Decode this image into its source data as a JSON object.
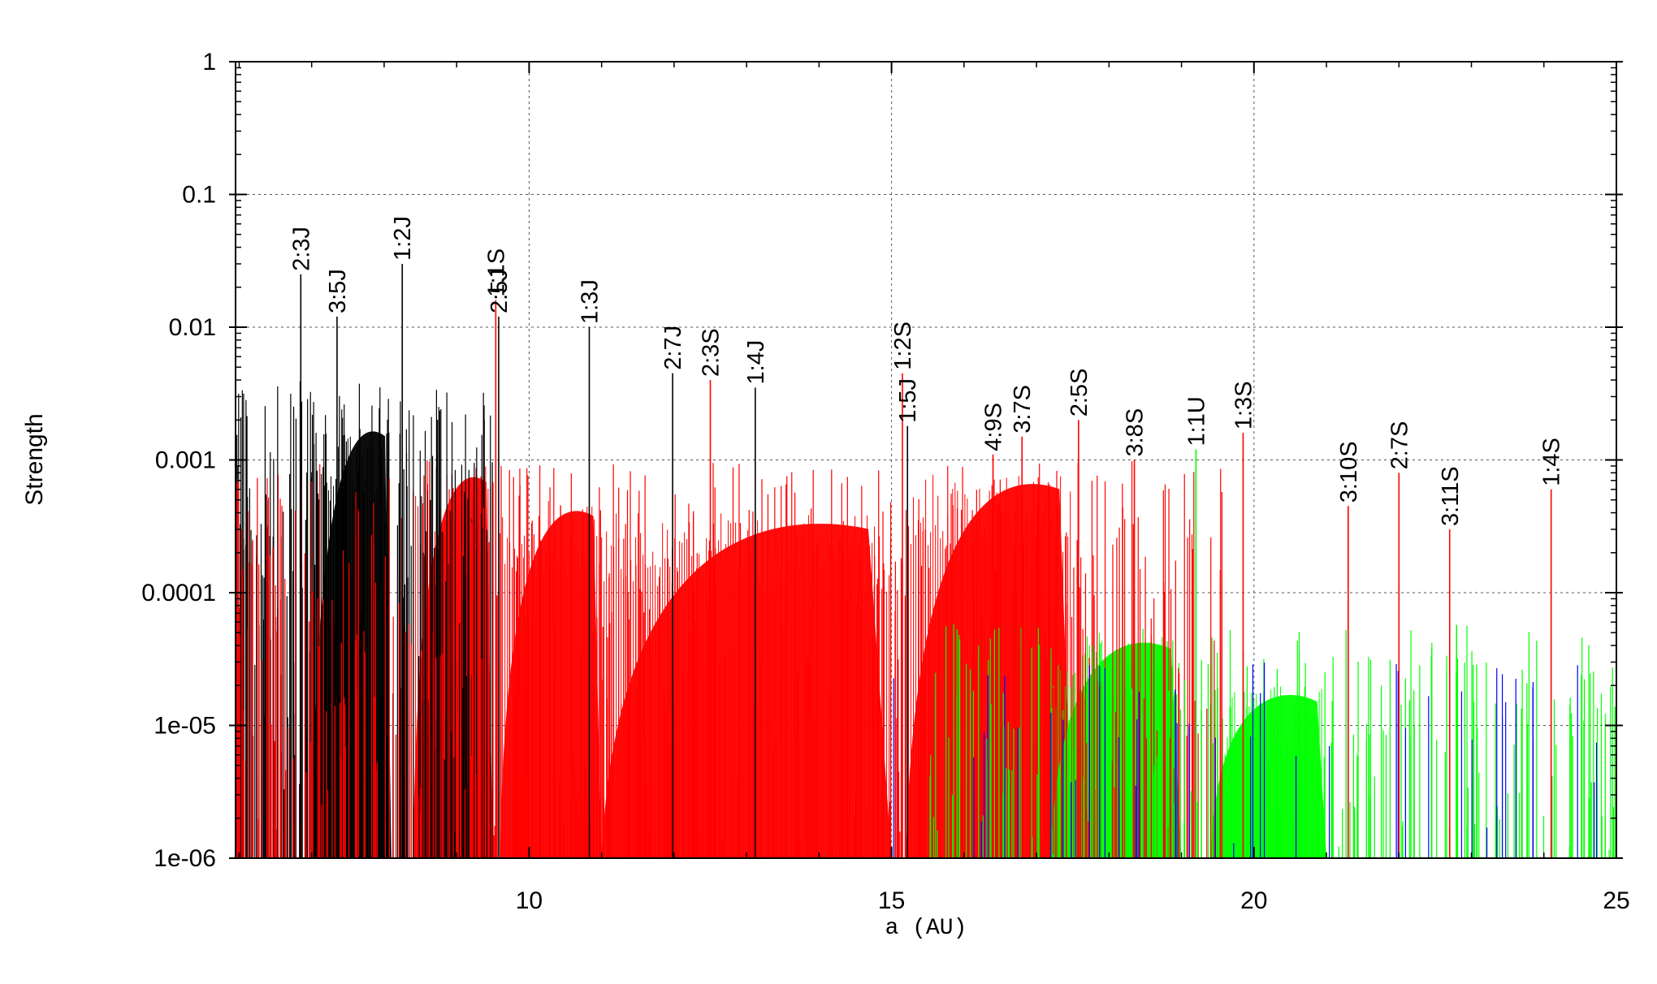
{
  "chart_data": {
    "type": "bar",
    "xlabel": "a (AU)",
    "ylabel": "Strength",
    "xlim": [
      5.95,
      25.0
    ],
    "ylim": [
      1e-06,
      1
    ],
    "yscale": "log",
    "grid": true,
    "x_ticks": [
      {
        "value": 10,
        "label": "10"
      },
      {
        "value": 15,
        "label": "15"
      },
      {
        "value": 20,
        "label": "20"
      },
      {
        "value": 25,
        "label": "25"
      }
    ],
    "y_ticks": [
      {
        "value": 1,
        "label": "1"
      },
      {
        "value": 0.1,
        "label": "0.1"
      },
      {
        "value": 0.01,
        "label": "0.01"
      },
      {
        "value": 0.001,
        "label": "0.001"
      },
      {
        "value": 0.0001,
        "label": "0.0001"
      },
      {
        "value": 1e-05,
        "label": "1e-05"
      },
      {
        "value": 1e-06,
        "label": "1e-06"
      }
    ],
    "colors": {
      "J": "#000000",
      "S": "#ff0000",
      "U": "#00ff00",
      "N": "#0000ff"
    },
    "labeled_resonances": [
      {
        "label": "2:3J",
        "a": 6.85,
        "strength": 0.025,
        "color": "#000000"
      },
      {
        "label": "3:5J",
        "a": 7.35,
        "strength": 0.012,
        "color": "#000000"
      },
      {
        "label": "1:2J",
        "a": 8.25,
        "strength": 0.03,
        "color": "#000000"
      },
      {
        "label": "1:1S",
        "a": 9.54,
        "strength": 0.016,
        "color": "#ff0000"
      },
      {
        "label": "2:5J",
        "a": 9.58,
        "strength": 0.012,
        "color": "#000000"
      },
      {
        "label": "1:3J",
        "a": 10.83,
        "strength": 0.01,
        "color": "#000000"
      },
      {
        "label": "2:7J",
        "a": 11.98,
        "strength": 0.0045,
        "color": "#000000"
      },
      {
        "label": "2:3S",
        "a": 12.5,
        "strength": 0.004,
        "color": "#ff0000"
      },
      {
        "label": "1:4J",
        "a": 13.12,
        "strength": 0.0035,
        "color": "#000000"
      },
      {
        "label": "1:5J",
        "a": 15.22,
        "strength": 0.0018,
        "color": "#000000"
      },
      {
        "label": "1:2S",
        "a": 15.15,
        "strength": 0.0045,
        "color": "#ff0000"
      },
      {
        "label": "4:9S",
        "a": 16.4,
        "strength": 0.0011,
        "color": "#ff0000"
      },
      {
        "label": "3:7S",
        "a": 16.8,
        "strength": 0.0015,
        "color": "#ff0000"
      },
      {
        "label": "2:5S",
        "a": 17.58,
        "strength": 0.002,
        "color": "#ff0000"
      },
      {
        "label": "3:8S",
        "a": 18.35,
        "strength": 0.001,
        "color": "#ff0000"
      },
      {
        "label": "1:1U",
        "a": 19.2,
        "strength": 0.0012,
        "color": "#00ff00"
      },
      {
        "label": "1:3S",
        "a": 19.85,
        "strength": 0.0016,
        "color": "#ff0000"
      },
      {
        "label": "3:10S",
        "a": 21.3,
        "strength": 0.00045,
        "color": "#ff0000"
      },
      {
        "label": "2:7S",
        "a": 22.0,
        "strength": 0.0008,
        "color": "#ff0000"
      },
      {
        "label": "3:11S",
        "a": 22.7,
        "strength": 0.0003,
        "color": "#ff0000"
      },
      {
        "label": "1:4S",
        "a": 24.1,
        "strength": 0.0006,
        "color": "#ff0000"
      }
    ],
    "background_resonances": [
      {
        "planet": "J",
        "x_range": [
          5.95,
          9.5
        ],
        "strength_range": [
          1e-06,
          0.004
        ],
        "count": 260
      },
      {
        "planet": "S",
        "x_range": [
          5.95,
          19.6
        ],
        "strength_range": [
          1e-06,
          0.001
        ],
        "count": 520
      },
      {
        "planet": "U",
        "x_range": [
          15.5,
          25.0
        ],
        "strength_range": [
          1e-06,
          6e-05
        ],
        "count": 220
      },
      {
        "planet": "N",
        "x_range": [
          15.0,
          25.0
        ],
        "strength_range": [
          1e-06,
          3e-05
        ],
        "count": 45
      }
    ],
    "dense_envelopes": [
      {
        "planet": "J",
        "x_range": [
          7.0,
          8.1
        ],
        "peak": 0.002
      },
      {
        "planet": "S",
        "x_range": [
          8.4,
          9.5
        ],
        "peak": 0.0009
      },
      {
        "planet": "S",
        "x_range": [
          9.6,
          11.0
        ],
        "peak": 0.0005
      },
      {
        "planet": "S",
        "x_range": [
          11.0,
          15.0
        ],
        "peak": 0.0004
      },
      {
        "planet": "S",
        "x_range": [
          15.2,
          17.5
        ],
        "peak": 0.0008
      },
      {
        "planet": "U",
        "x_range": [
          17.2,
          19.0
        ],
        "peak": 5e-05
      },
      {
        "planet": "U",
        "x_range": [
          19.4,
          21.0
        ],
        "peak": 2e-05
      }
    ]
  }
}
